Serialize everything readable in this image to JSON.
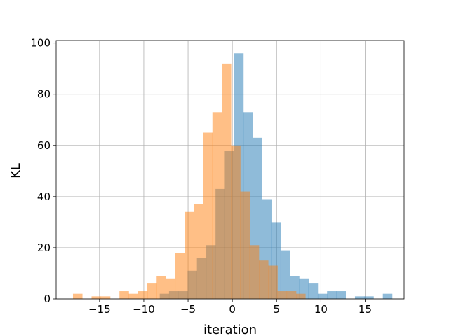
{
  "chart_data": {
    "type": "bar",
    "title": "",
    "xlabel": "iteration",
    "ylabel": "KL",
    "xlim": [
      -19.9,
      19.4
    ],
    "ylim": [
      0,
      101
    ],
    "grid": true,
    "x_ticks": [
      -15,
      -10,
      -5,
      0,
      5,
      10,
      15
    ],
    "x_tick_labels": [
      "−15",
      "−10",
      "−5",
      "0",
      "5",
      "10",
      "15"
    ],
    "y_ticks": [
      0,
      20,
      40,
      60,
      80,
      100
    ],
    "y_tick_labels": [
      "0",
      "20",
      "40",
      "60",
      "80",
      "100"
    ],
    "series": [
      {
        "color": "#1f77b4",
        "opacity": 0.5,
        "bin_width": 1.05,
        "bins": [
          [
            -8.2,
            2
          ],
          [
            -7.15,
            3
          ],
          [
            -6.1,
            3
          ],
          [
            -5.05,
            11
          ],
          [
            -4.0,
            16
          ],
          [
            -2.95,
            21
          ],
          [
            -1.9,
            43
          ],
          [
            -0.85,
            58
          ],
          [
            0.2,
            96
          ],
          [
            1.25,
            73
          ],
          [
            2.3,
            63
          ],
          [
            3.35,
            39
          ],
          [
            4.4,
            30
          ],
          [
            5.45,
            19
          ],
          [
            6.5,
            9
          ],
          [
            7.55,
            8
          ],
          [
            8.6,
            6
          ],
          [
            9.65,
            2
          ],
          [
            10.7,
            3
          ],
          [
            11.75,
            3
          ],
          [
            12.8,
            0
          ],
          [
            13.85,
            1
          ],
          [
            14.9,
            1
          ],
          [
            15.95,
            0
          ],
          [
            17.0,
            2
          ]
        ]
      },
      {
        "color": "#ff7f0e",
        "opacity": 0.5,
        "bin_width": 1.05,
        "bins": [
          [
            -18.0,
            2
          ],
          [
            -16.95,
            0
          ],
          [
            -15.9,
            1
          ],
          [
            -14.85,
            1
          ],
          [
            -13.8,
            0
          ],
          [
            -12.75,
            3
          ],
          [
            -11.7,
            2
          ],
          [
            -10.65,
            3
          ],
          [
            -9.6,
            6
          ],
          [
            -8.55,
            9
          ],
          [
            -7.5,
            8
          ],
          [
            -6.45,
            18
          ],
          [
            -5.4,
            34
          ],
          [
            -4.35,
            37
          ],
          [
            -3.3,
            65
          ],
          [
            -2.25,
            73
          ],
          [
            -1.2,
            92
          ],
          [
            -0.15,
            60
          ],
          [
            0.9,
            42
          ],
          [
            1.95,
            21
          ],
          [
            3.0,
            15
          ],
          [
            4.05,
            13
          ],
          [
            5.1,
            3
          ],
          [
            6.15,
            3
          ],
          [
            7.2,
            2
          ]
        ]
      }
    ]
  }
}
